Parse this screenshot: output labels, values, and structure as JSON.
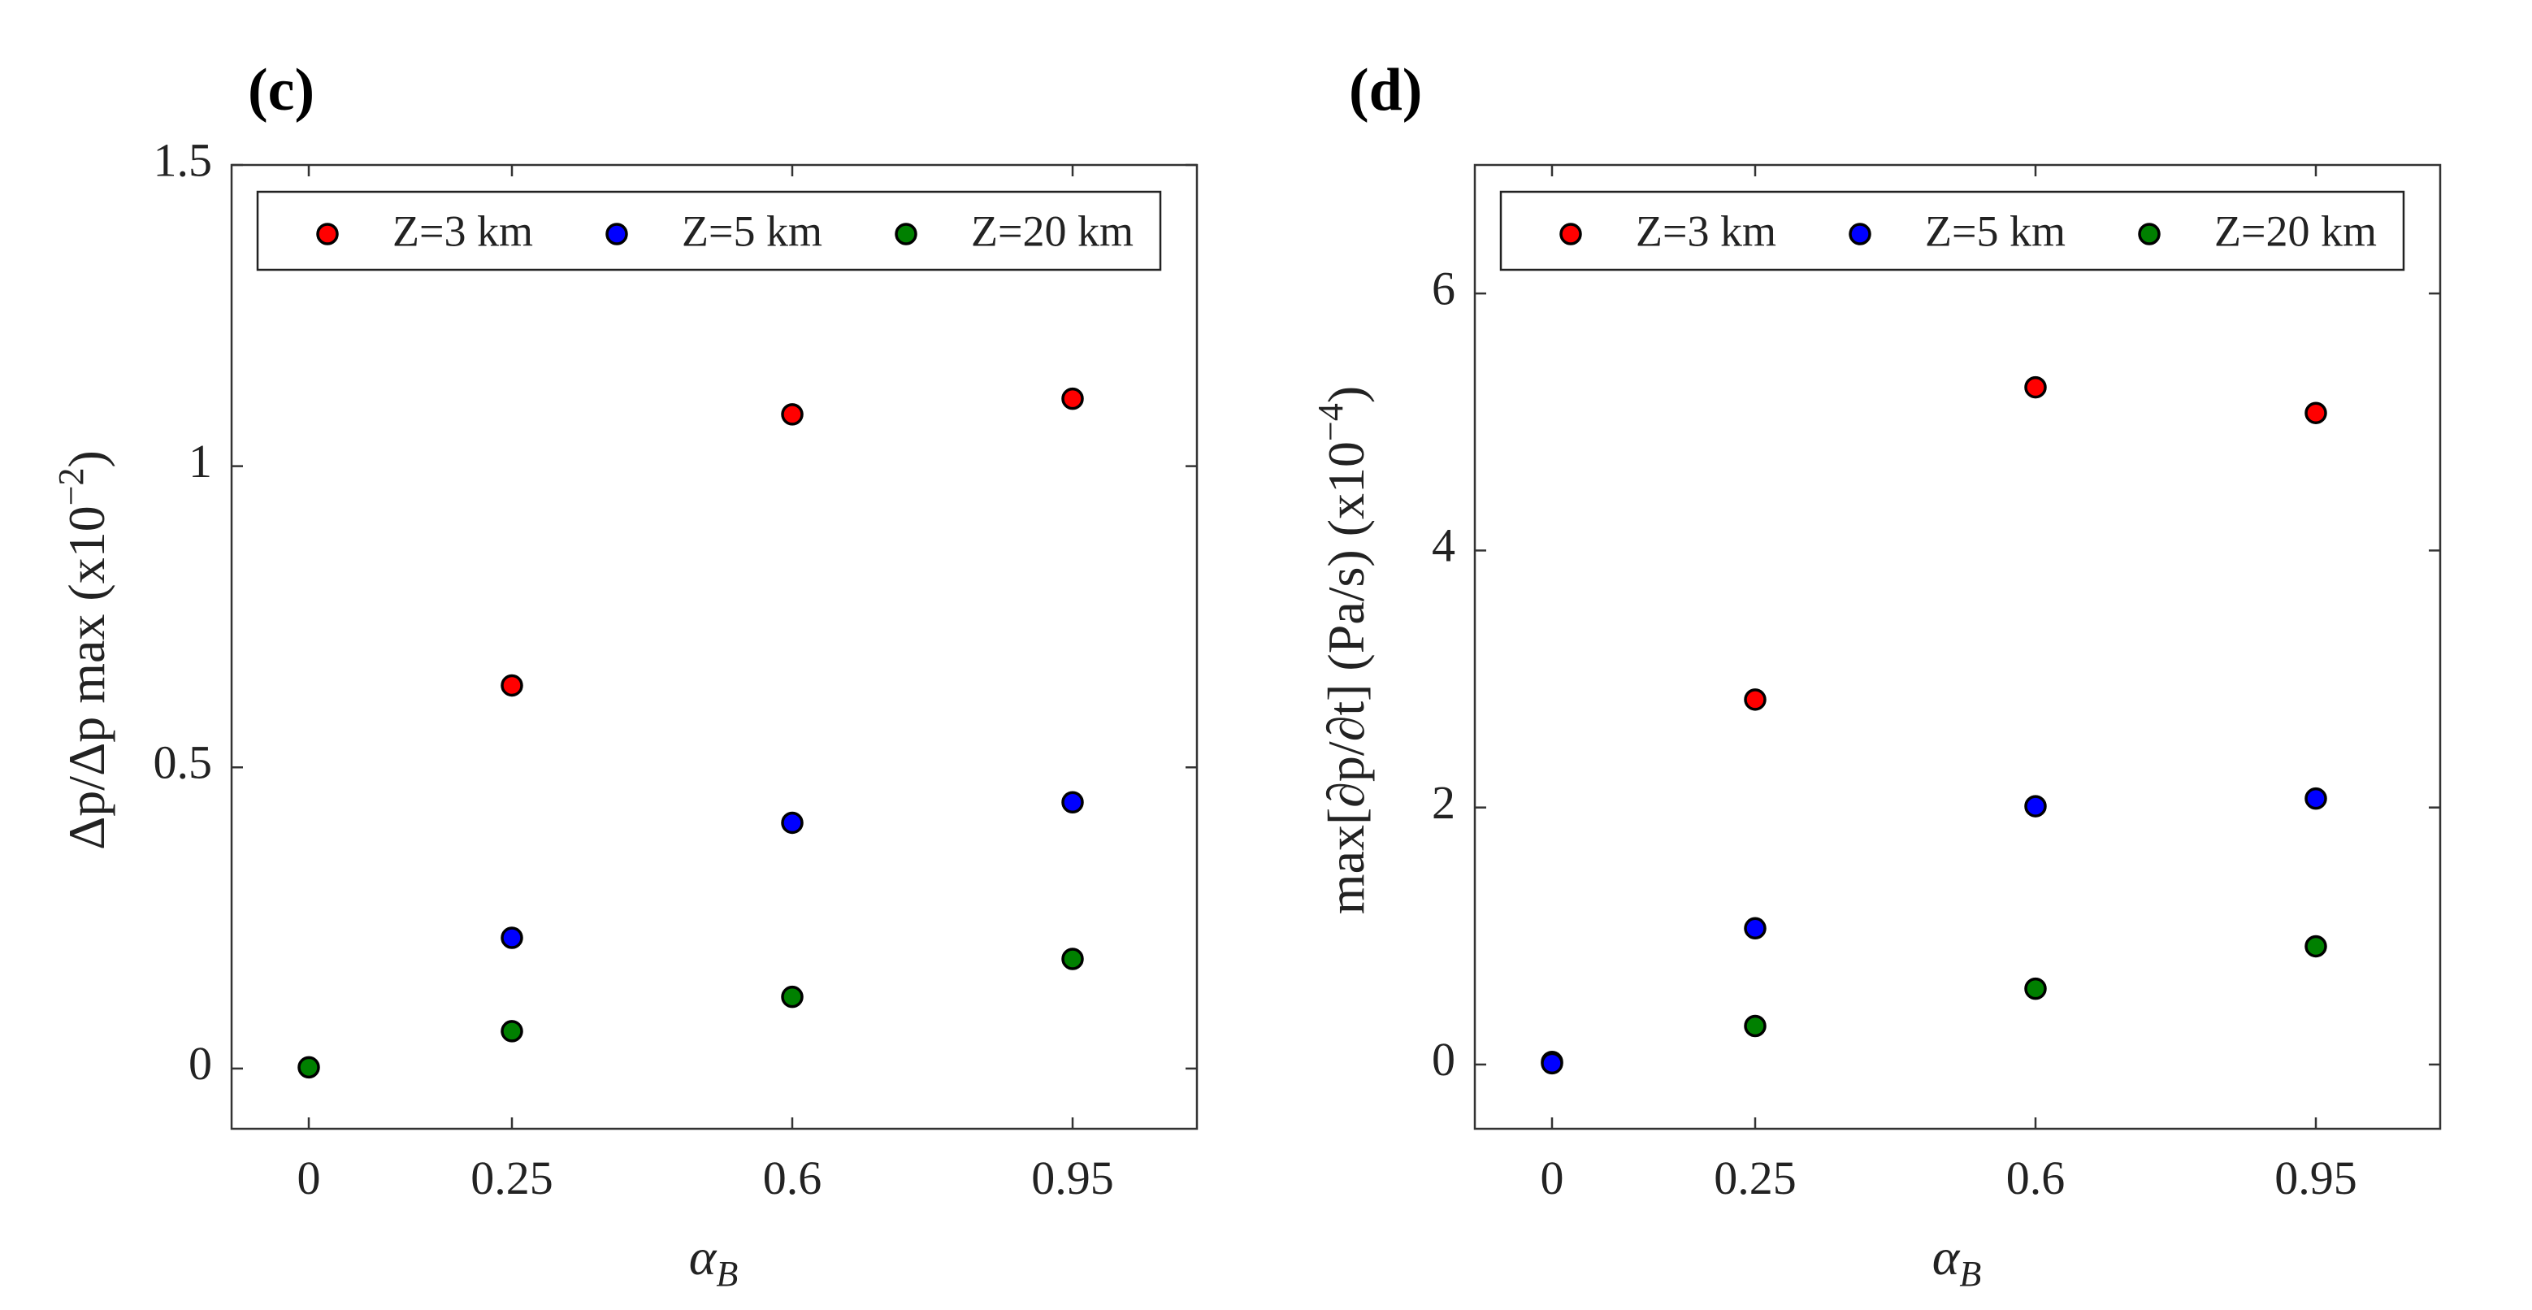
{
  "chart_data": [
    {
      "type": "scatter",
      "panel_label": "(c)",
      "title": "",
      "xlabel": "α",
      "xlabel_sub": "B",
      "ylabel": "Δp/Δp max (x10",
      "ylabel_exp": "−2",
      "ylabel_close": ")",
      "categories": [
        "0",
        "0.25",
        "0.6",
        "0.95"
      ],
      "ylim": [
        -0.1,
        1.5
      ],
      "yticks": [
        0,
        0.5,
        1,
        1.5
      ],
      "ytick_labels": [
        "0",
        "0.5",
        "1",
        "1.5"
      ],
      "legend_position": "top",
      "series": [
        {
          "name": "Z=3 km",
          "color": "#ff0000",
          "values": [
            null,
            0.636,
            1.086,
            1.112
          ]
        },
        {
          "name": "Z=5 km",
          "color": "#0000ff",
          "values": [
            null,
            0.217,
            0.408,
            0.442
          ]
        },
        {
          "name": "Z=20 km",
          "color": "#008000",
          "values": [
            0.002,
            0.062,
            0.119,
            0.182
          ]
        }
      ]
    },
    {
      "type": "scatter",
      "panel_label": "(d)",
      "title": "",
      "xlabel": "α",
      "xlabel_sub": "B",
      "ylabel": "max[∂p/∂t] (Pa/s) (x10",
      "ylabel_exp": "−4",
      "ylabel_close": ")",
      "categories": [
        "0",
        "0.25",
        "0.6",
        "0.95"
      ],
      "ylim": [
        -0.5,
        7
      ],
      "yticks": [
        0,
        2,
        4,
        6
      ],
      "ytick_labels": [
        "0",
        "2",
        "4",
        "6"
      ],
      "legend_position": "top",
      "series": [
        {
          "name": "Z=3 km",
          "color": "#ff0000",
          "values": [
            null,
            2.84,
            5.27,
            5.07
          ]
        },
        {
          "name": "Z=5 km",
          "color": "#0000ff",
          "values": [
            0.01,
            1.06,
            2.01,
            2.07
          ]
        },
        {
          "name": "Z=20 km",
          "color": "#008000",
          "values": [
            0.02,
            0.3,
            0.59,
            0.92
          ]
        }
      ]
    }
  ]
}
